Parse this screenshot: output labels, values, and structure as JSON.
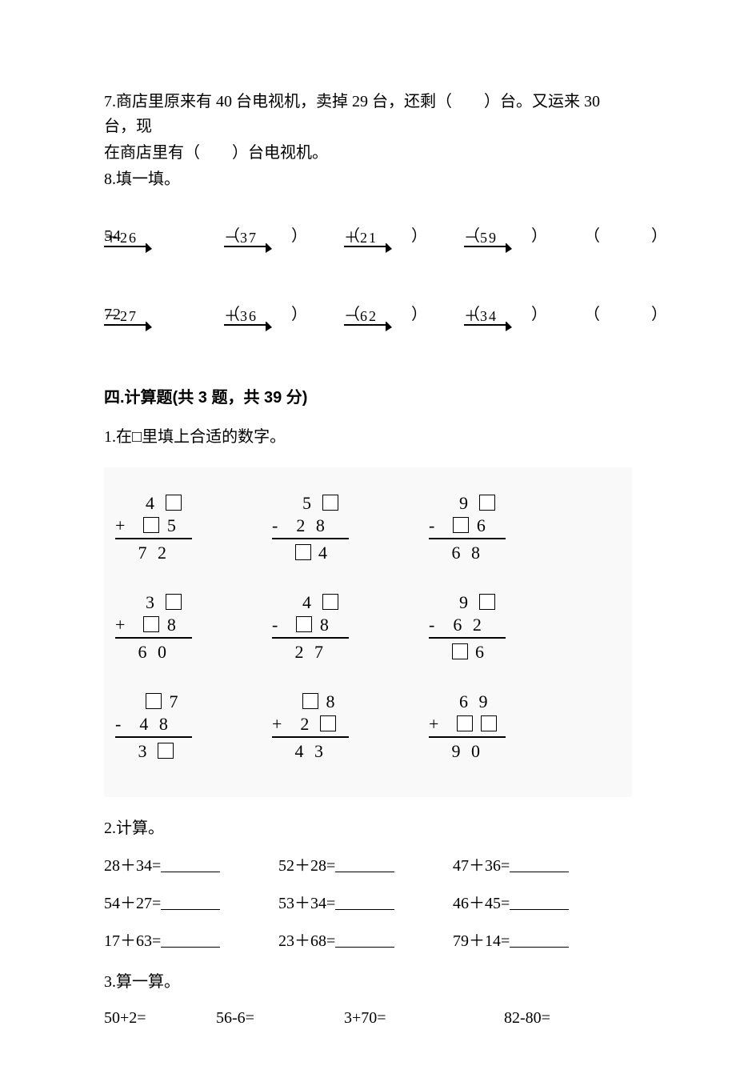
{
  "colors": {
    "text": "#000000",
    "background": "#ffffff",
    "figure_background": "#f9f9f9",
    "box_border": "#000000",
    "rule": "#000000",
    "arrow": "#000000"
  },
  "typography": {
    "body_family": "SimSun",
    "heading_family": "SimHei",
    "body_size_pt": 15,
    "heading_weight": "bold"
  },
  "q7": {
    "label": "7.",
    "line1": "商店里原来有 40 台电视机，卖掉 29 台，还剩（　　）台。又运来 30 台，现",
    "line2": "在商店里有（　　）台电视机。"
  },
  "q8": {
    "label": "8.",
    "title": "填一填。",
    "chains": [
      {
        "start": "54",
        "steps": [
          "＋26",
          "－37",
          "＋21",
          "－59"
        ]
      },
      {
        "start": "72",
        "steps": [
          "－27",
          "＋36",
          "－62",
          "＋34"
        ]
      }
    ],
    "paren": "（　　　）",
    "item_x": [
      0,
      150,
      300,
      450,
      600
    ],
    "arrow": {
      "line_width": 2,
      "head_w": 8,
      "head_h": 5
    }
  },
  "section4": {
    "title": "四.计算题(共 3 题，共 39 分)"
  },
  "p1": {
    "label": "1.",
    "title": "在□里填上合适的数字。",
    "grid": [
      [
        {
          "r1": [
            "",
            "4",
            "□"
          ],
          "op": "+",
          "r2": [
            "□",
            "5"
          ],
          "ans": [
            "7",
            "2"
          ]
        },
        {
          "r1": [
            "",
            "5",
            "□"
          ],
          "op": "-",
          "r2": [
            "2",
            "8"
          ],
          "ans": [
            "□",
            "4"
          ]
        },
        {
          "r1": [
            "",
            "9",
            "□"
          ],
          "op": "-",
          "r2": [
            "□",
            "6"
          ],
          "ans": [
            "6",
            "8"
          ]
        }
      ],
      [
        {
          "r1": [
            "",
            "3",
            "□"
          ],
          "op": "+",
          "r2": [
            "□",
            "8"
          ],
          "ans": [
            "6",
            "0"
          ]
        },
        {
          "r1": [
            "",
            "4",
            "□"
          ],
          "op": "-",
          "r2": [
            "□",
            "8"
          ],
          "ans": [
            "2",
            "7"
          ]
        },
        {
          "r1": [
            "",
            "9",
            "□"
          ],
          "op": "-",
          "r2": [
            "6",
            "2"
          ],
          "ans": [
            "□",
            "6"
          ]
        }
      ],
      [
        {
          "r1": [
            "",
            "□",
            "7"
          ],
          "op": "-",
          "r2": [
            "4",
            "8"
          ],
          "ans": [
            "3",
            "□"
          ]
        },
        {
          "r1": [
            "",
            "□",
            "8"
          ],
          "op": "+",
          "r2": [
            "2",
            "□"
          ],
          "ans": [
            "4",
            "3"
          ]
        },
        {
          "r1": [
            "",
            "6",
            "9"
          ],
          "op": "+",
          "r2": [
            "□",
            "□"
          ],
          "ans": [
            "9",
            "0"
          ]
        }
      ]
    ]
  },
  "p2": {
    "label": "2.",
    "title": "计算。",
    "rows": [
      [
        "28＋34=",
        "52＋28=",
        "47＋36="
      ],
      [
        "54＋27=",
        "53＋34=",
        "46＋45="
      ],
      [
        "17＋63=",
        "23＋68=",
        "79＋14="
      ]
    ]
  },
  "p3": {
    "label": "3.",
    "title": "算一算。",
    "row": [
      "50+2=",
      "56-6=",
      "3+70=",
      "82-80="
    ]
  }
}
